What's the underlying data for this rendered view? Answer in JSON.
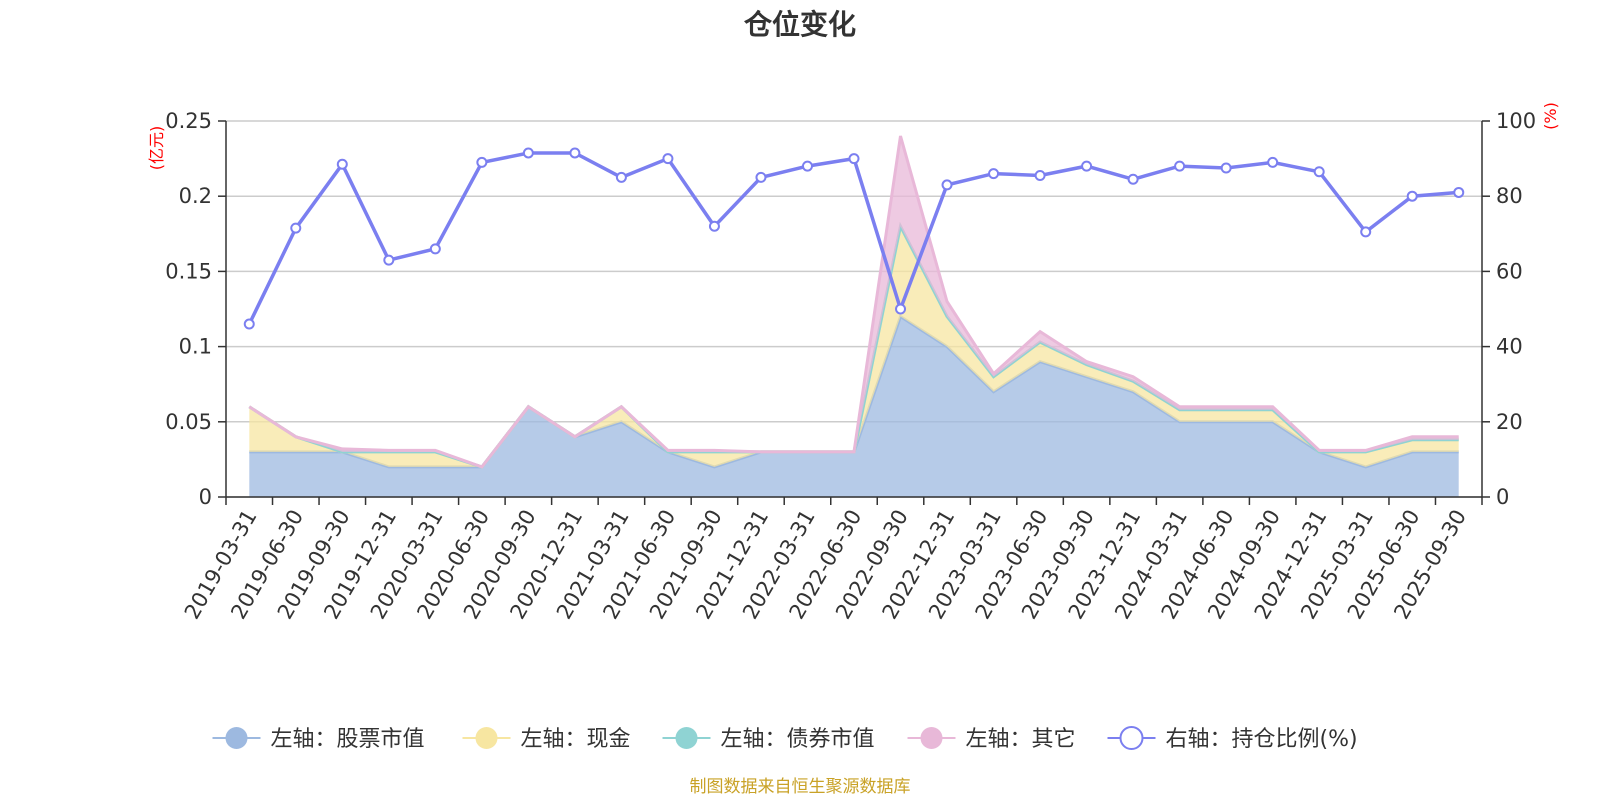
{
  "chart_data": {
    "type": "area",
    "title": "仓位变化",
    "categories": [
      "2019-03-31",
      "2019-06-30",
      "2019-09-30",
      "2019-12-31",
      "2020-03-31",
      "2020-06-30",
      "2020-09-30",
      "2020-12-31",
      "2021-03-31",
      "2021-06-30",
      "2021-09-30",
      "2021-12-31",
      "2022-03-31",
      "2022-06-30",
      "2022-09-30",
      "2022-12-31",
      "2023-03-31",
      "2023-06-30",
      "2023-09-30",
      "2023-12-31",
      "2024-03-31",
      "2024-06-30",
      "2024-09-30",
      "2024-12-31",
      "2025-03-31",
      "2025-06-30",
      "2025-09-30"
    ],
    "left_axis": {
      "unit": "(亿元)",
      "ylim": [
        0,
        0.25
      ],
      "ticks": [
        "0",
        "0.05",
        "0.1",
        "0.15",
        "0.2",
        "0.25"
      ]
    },
    "right_axis": {
      "unit": "(%)",
      "ylim": [
        0,
        100
      ],
      "ticks": [
        "0",
        "20",
        "40",
        "60",
        "80",
        "100"
      ]
    },
    "series": [
      {
        "name": "左轴：股票市值",
        "axis": "left",
        "stack": true,
        "color": "#9db9e0",
        "values": [
          0.03,
          0.03,
          0.03,
          0.02,
          0.02,
          0.02,
          0.06,
          0.04,
          0.05,
          0.03,
          0.02,
          0.03,
          0.03,
          0.03,
          0.12,
          0.1,
          0.07,
          0.09,
          0.08,
          0.07,
          0.05,
          0.05,
          0.05,
          0.03,
          0.02,
          0.03,
          0.03
        ]
      },
      {
        "name": "左轴：现金",
        "axis": "left",
        "stack": true,
        "color": "#f7e6a1",
        "values": [
          0.03,
          0.01,
          0.0,
          0.01,
          0.01,
          0.0,
          0.0,
          0.0,
          0.01,
          0.0,
          0.01,
          0.0,
          0.0,
          0.0,
          0.06,
          0.02,
          0.01,
          0.013,
          0.008,
          0.007,
          0.008,
          0.008,
          0.008,
          0.0,
          0.01,
          0.008,
          0.008
        ]
      },
      {
        "name": "左轴：债券市值",
        "axis": "left",
        "stack": true,
        "color": "#8fd3d3",
        "values": [
          0,
          0,
          0,
          0,
          0,
          0,
          0,
          0,
          0,
          0,
          0,
          0,
          0,
          0,
          0,
          0,
          0,
          0,
          0,
          0,
          0,
          0,
          0,
          0,
          0,
          0,
          0
        ]
      },
      {
        "name": "左轴：其它",
        "axis": "left",
        "stack": true,
        "color": "#e8b8d8",
        "values": [
          0.0,
          0.0,
          0.002,
          0.001,
          0.001,
          0.0,
          0.0,
          0.0,
          0.0,
          0.001,
          0.001,
          0.0,
          0.0,
          0.0,
          0.06,
          0.01,
          0.002,
          0.007,
          0.002,
          0.003,
          0.002,
          0.002,
          0.002,
          0.001,
          0.001,
          0.002,
          0.002
        ]
      },
      {
        "name": "右轴：持仓比例(%)",
        "axis": "right",
        "stack": false,
        "color": "#7b7ff0",
        "values": [
          46,
          71.5,
          88.5,
          63,
          66,
          89,
          91.5,
          91.5,
          85,
          90,
          72,
          85,
          88,
          90,
          50,
          83,
          86,
          85.5,
          88,
          84.5,
          88,
          87.5,
          89,
          86.5,
          70.5,
          80,
          81
        ]
      }
    ]
  },
  "legend": [
    {
      "label": "左轴：股票市值",
      "color": "#9db9e0",
      "symbol": "filled-circle"
    },
    {
      "label": "左轴：现金",
      "color": "#f7e6a1",
      "symbol": "filled-circle"
    },
    {
      "label": "左轴：债券市值",
      "color": "#8fd3d3",
      "symbol": "filled-circle"
    },
    {
      "label": "左轴：其它",
      "color": "#e8b8d8",
      "symbol": "filled-circle"
    },
    {
      "label": "右轴：持仓比例(%)",
      "color": "#7b7ff0",
      "symbol": "hollow-circle"
    }
  ],
  "source_note": "制图数据来自恒生聚源数据库"
}
